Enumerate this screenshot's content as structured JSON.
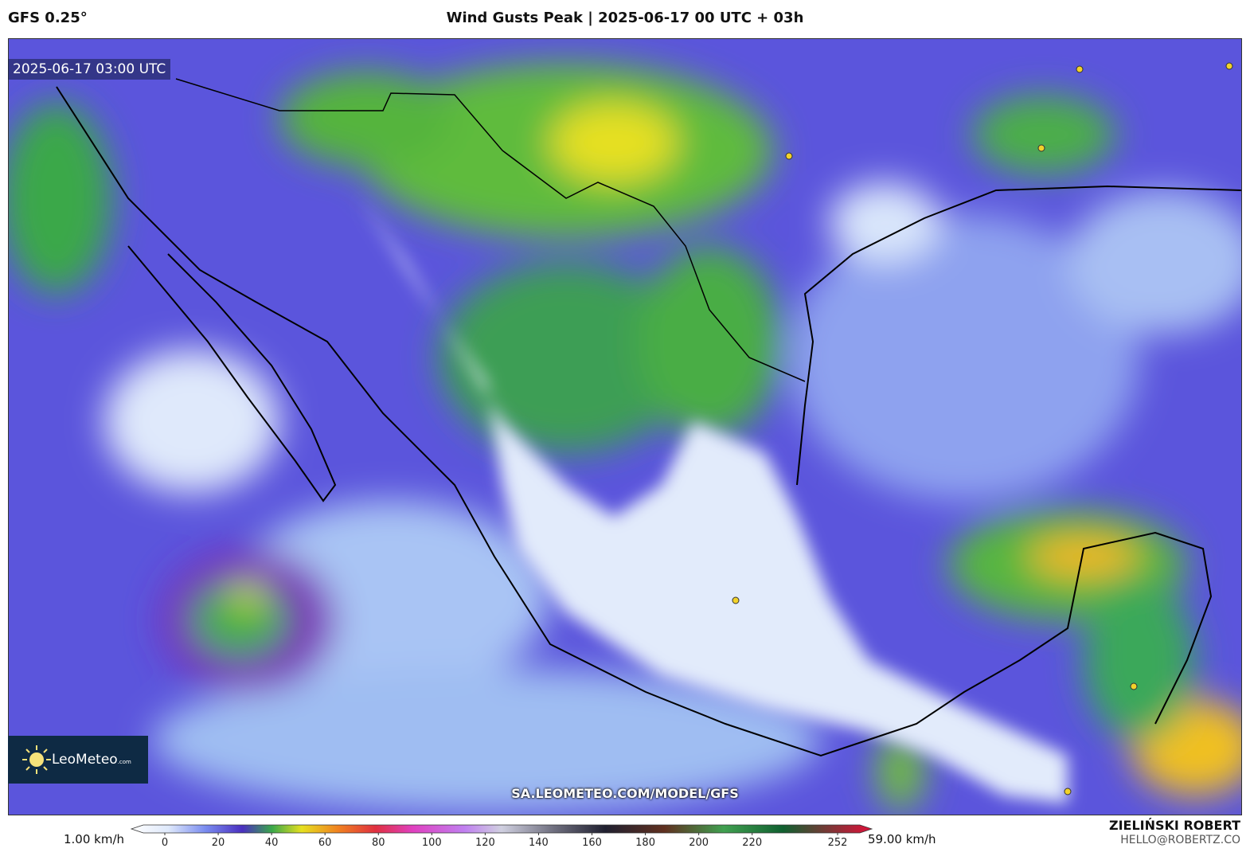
{
  "header": {
    "model": "GFS 0.25°",
    "title": "Wind Gusts Peak | 2025-06-17 00 UTC + 03h"
  },
  "map": {
    "timestamp": "2025-06-17 03:00 UTC",
    "watermark": "SA.LEOMETEO.COM/MODEL/GFS",
    "logo": "LeoMeteo",
    "logo_suffix": ".com"
  },
  "colorbar": {
    "min_label": "1.00 km/h",
    "max_label": "59.00 km/h",
    "ticks": [
      0,
      20,
      40,
      60,
      80,
      100,
      120,
      140,
      160,
      180,
      200,
      220,
      252
    ]
  },
  "credit": {
    "name": "ZIELIŃSKI ROBERT",
    "email": "HELLO@ROBERTZ.CO"
  }
}
